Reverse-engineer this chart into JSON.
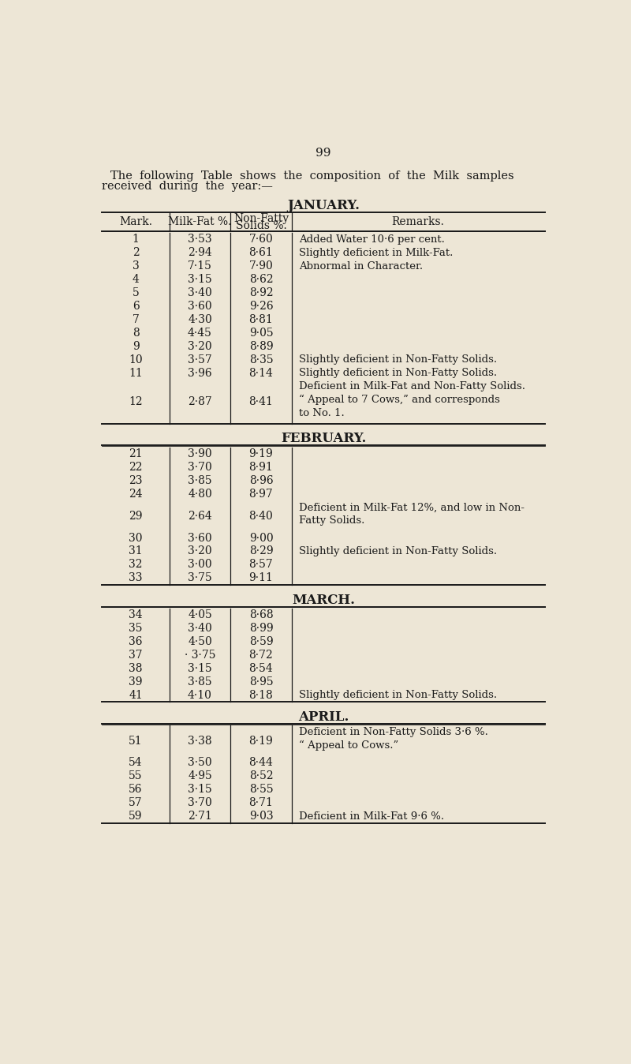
{
  "page_number": "99",
  "intro_line1": "The  following  Table  shows  the  composition  of  the  Milk  samples",
  "intro_line2": "received  during  the  year:—",
  "bg_color": "#ede6d6",
  "text_color": "#1a1a1a",
  "sections": [
    {
      "title": "JANUARY.",
      "has_headers": true,
      "rows": [
        [
          "1",
          "3·53",
          "7·60",
          "Added Water 10·6 per cent."
        ],
        [
          "2",
          "2·94",
          "8·61",
          "Slightly deficient in Milk-Fat."
        ],
        [
          "3",
          "7·15",
          "7·90",
          "Abnormal in Character."
        ],
        [
          "4",
          "3·15",
          "8·62",
          ""
        ],
        [
          "5",
          "3·40",
          "8·92",
          ""
        ],
        [
          "6",
          "3·60",
          "9·26",
          ""
        ],
        [
          "7",
          "4·30",
          "8·81",
          ""
        ],
        [
          "8",
          "4·45",
          "9·05",
          ""
        ],
        [
          "9",
          "3·20",
          "8·89",
          ""
        ],
        [
          "10",
          "3·57",
          "8·35",
          "Slightly deficient in Non-Fatty Solids."
        ],
        [
          "11",
          "3·96",
          "8·14",
          "Slightly deficient in Non-Fatty Solids."
        ],
        [
          "12",
          "2·87",
          "8·41",
          "Deficient in Milk-Fat and Non-Fatty Solids.\n“ Appeal to 7 Cows,” and corresponds\nto No. 1."
        ]
      ]
    },
    {
      "title": "FEBRUARY.",
      "has_headers": false,
      "rows": [
        [
          "21",
          "3·90",
          "9·19",
          ""
        ],
        [
          "22",
          "3·70",
          "8·91",
          ""
        ],
        [
          "23",
          "3·85",
          "8·96",
          ""
        ],
        [
          "24",
          "4·80",
          "8·97",
          ""
        ],
        [
          "29",
          "2·64",
          "8·40",
          "Deficient in Milk-Fat 12%, and low in Non-\nFatty Solids."
        ],
        [
          "30",
          "3·60",
          "9·00",
          ""
        ],
        [
          "31",
          "3·20",
          "8·29",
          "Slightly deficient in Non-Fatty Solids."
        ],
        [
          "32",
          "3·00",
          "8·57",
          ""
        ],
        [
          "33",
          "3·75",
          "9·11",
          ""
        ]
      ]
    },
    {
      "title": "MARCH.",
      "has_headers": false,
      "rows": [
        [
          "34",
          "4·05",
          "8·68",
          ""
        ],
        [
          "35",
          "3·40",
          "8·99",
          ""
        ],
        [
          "36",
          "4·50",
          "8·59",
          ""
        ],
        [
          "37",
          "· 3·75",
          "8·72",
          ""
        ],
        [
          "38",
          "3·15",
          "8·54",
          ""
        ],
        [
          "39",
          "3·85",
          "8·95",
          ""
        ],
        [
          "41",
          "4·10",
          "8·18",
          "Slightly deficient in Non-Fatty Solids."
        ]
      ]
    },
    {
      "title": "APRIL.",
      "has_headers": false,
      "rows": [
        [
          "51",
          "3·38",
          "8·19",
          "Deficient in Non-Fatty Solids 3·6 %.\n“ Appeal to Cows.”"
        ],
        [
          "54",
          "3·50",
          "8·44",
          ""
        ],
        [
          "55",
          "4·95",
          "8·52",
          ""
        ],
        [
          "56",
          "3·15",
          "8·55",
          ""
        ],
        [
          "57",
          "3·70",
          "8·71",
          ""
        ],
        [
          "59",
          "2·71",
          "9·03",
          "Deficient in Milk-Fat 9·6 %."
        ]
      ]
    }
  ]
}
